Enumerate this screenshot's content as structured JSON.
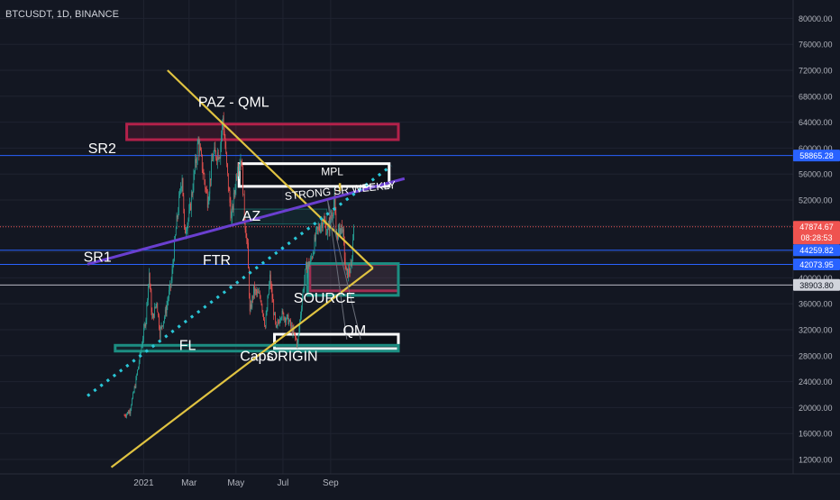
{
  "header": {
    "symbol": "BTCUSDT, 1D, BINANCE"
  },
  "colors": {
    "background": "#131722",
    "grid": "#1f2330",
    "up": "#26a69a",
    "down": "#ef5350",
    "yellow": "#e0c341",
    "purple": "#6a3fd0",
    "cyan": "#29c6d6",
    "blue_line": "#2962ff",
    "red_box": "#b3214a",
    "teal_box": "#1c8e82",
    "white_box": "#ffffff",
    "axis_text": "#b2b5be"
  },
  "chart_data": {
    "type": "candlestick",
    "symbol": "BTCUSDT",
    "interval": "1D",
    "exchange": "BINANCE",
    "ylim": [
      10000,
      82000
    ],
    "y_ticks": [
      12000,
      16000,
      20000,
      24000,
      28000,
      32000,
      36000,
      40000,
      44000,
      48000,
      52000,
      56000,
      60000,
      64000,
      68000,
      72000,
      76000,
      80000
    ],
    "y_tick_labels": [
      "12000.00",
      "16000.00",
      "20000.00",
      "24000.00",
      "28000.00",
      "32000.00",
      "36000.00",
      "40000.00",
      "44000.00",
      "48000.00",
      "52000.00",
      "56000.00",
      "60000.00",
      "64000.00",
      "68000.00",
      "72000.00",
      "76000.00",
      "80000.00"
    ],
    "x_labels": [
      {
        "label": "2021",
        "date": "2021-01-01"
      },
      {
        "label": "Mar",
        "date": "2021-03-01"
      },
      {
        "label": "May",
        "date": "2021-05-01"
      },
      {
        "label": "Jul",
        "date": "2021-07-01"
      },
      {
        "label": "Sep",
        "date": "2021-09-01"
      }
    ],
    "price_tags": [
      {
        "value": 58865.28,
        "text": "58865.28",
        "color": "#2962ff"
      },
      {
        "value": 47874.67,
        "text": "47874.67",
        "sub": "08:28:53",
        "color": "#ef5350"
      },
      {
        "value": 44259.82,
        "text": "44259.82",
        "color": "#2962ff"
      },
      {
        "value": 42073.95,
        "text": "42073.95",
        "color": "#2962ff"
      },
      {
        "value": 38903.8,
        "text": "38903.80",
        "color": "#d1d4dc"
      }
    ],
    "price_path": [
      [
        "2020-12-07",
        18800
      ],
      [
        "2020-12-14",
        19500
      ],
      [
        "2020-12-21",
        23500
      ],
      [
        "2020-12-28",
        28500
      ],
      [
        "2021-01-04",
        34000
      ],
      [
        "2021-01-08",
        40800
      ],
      [
        "2021-01-12",
        33500
      ],
      [
        "2021-01-18",
        36500
      ],
      [
        "2021-01-22",
        31500
      ],
      [
        "2021-01-29",
        34500
      ],
      [
        "2021-02-06",
        39500
      ],
      [
        "2021-02-12",
        47500
      ],
      [
        "2021-02-20",
        56000
      ],
      [
        "2021-02-23",
        47000
      ],
      [
        "2021-03-01",
        49500
      ],
      [
        "2021-03-13",
        61000
      ],
      [
        "2021-03-25",
        52000
      ],
      [
        "2021-04-01",
        58800
      ],
      [
        "2021-04-10",
        59500
      ],
      [
        "2021-04-14",
        64800
      ],
      [
        "2021-04-20",
        55500
      ],
      [
        "2021-04-25",
        49000
      ],
      [
        "2021-05-03",
        57500
      ],
      [
        "2021-05-08",
        58500
      ],
      [
        "2021-05-12",
        49500
      ],
      [
        "2021-05-16",
        44500
      ],
      [
        "2021-05-19",
        34500
      ],
      [
        "2021-05-24",
        38000
      ],
      [
        "2021-06-02",
        37000
      ],
      [
        "2021-06-08",
        32500
      ],
      [
        "2021-06-14",
        40000
      ],
      [
        "2021-06-22",
        31800
      ],
      [
        "2021-06-28",
        34500
      ],
      [
        "2021-07-08",
        33500
      ],
      [
        "2021-07-20",
        29800
      ],
      [
        "2021-07-26",
        37000
      ],
      [
        "2021-07-31",
        41500
      ],
      [
        "2021-08-06",
        42500
      ],
      [
        "2021-08-14",
        47000
      ],
      [
        "2021-08-22",
        49000
      ],
      [
        "2021-08-28",
        47000
      ],
      [
        "2021-09-06",
        52000
      ],
      [
        "2021-09-08",
        46500
      ],
      [
        "2021-09-16",
        48000
      ],
      [
        "2021-09-21",
        40500
      ],
      [
        "2021-09-28",
        41500
      ],
      [
        "2021-10-01",
        47874.67
      ]
    ],
    "zones": [
      {
        "label": "PAZ - QML",
        "x1": "2020-12-10",
        "x2": "2021-11-28",
        "y_top": 63700,
        "y_bottom": 61300,
        "color": "#b3214a"
      },
      {
        "label": "MPL",
        "x1": "2021-05-05",
        "x2": "2021-11-16",
        "y_top": 57600,
        "y_bottom": 54100,
        "color": "#ffffff"
      },
      {
        "label": "AZ",
        "x1": "2021-04-25",
        "x2": "2021-08-27",
        "y_top": 50600,
        "y_bottom": 48300,
        "color": "#1c8e82"
      },
      {
        "label": "SOURCE",
        "x1": "2021-08-05",
        "x2": "2021-11-28",
        "y_top": 42100,
        "y_bottom": 38000,
        "color": "#b3214a"
      },
      {
        "label": "",
        "x1": "2021-08-02",
        "x2": "2021-11-28",
        "y_top": 42200,
        "y_bottom": 37300,
        "color": "#1c8e82"
      },
      {
        "label": "QM",
        "x1": "2021-06-20",
        "x2": "2021-11-28",
        "y_top": 31300,
        "y_bottom": 29100,
        "color": "#ffffff"
      },
      {
        "label": "FL",
        "x1": "2020-11-25",
        "x2": "2021-11-28",
        "y_top": 29600,
        "y_bottom": 28700,
        "color": "#1c8e82"
      }
    ],
    "annotations": [
      {
        "text": "PAZ - QML",
        "date": "2021-04-28",
        "value": 66400
      },
      {
        "text": "SR2",
        "date": "2020-11-08",
        "value": 59200
      },
      {
        "text": "MPL",
        "date": "2021-09-03",
        "value": 55800
      },
      {
        "text": "STRONG SR WEEKLY",
        "date": "2021-11-25",
        "value": 53800
      },
      {
        "text": "AZ",
        "date": "2021-05-21",
        "value": 48800
      },
      {
        "text": "SR1",
        "date": "2020-11-02",
        "value": 42500
      },
      {
        "text": "FTR",
        "date": "2021-04-06",
        "value": 42000
      },
      {
        "text": "SOURCE",
        "date": "2021-08-24",
        "value": 36200
      },
      {
        "text": "QM",
        "date": "2021-10-02",
        "value": 31200
      },
      {
        "text": "FL",
        "date": "2021-02-27",
        "value": 28900
      },
      {
        "text": "Caps",
        "date": "2021-05-28",
        "value": 27200
      },
      {
        "text": "ORIGIN",
        "date": "2021-07-13",
        "value": 27200
      }
    ],
    "trendlines": [
      {
        "name": "descending-triangle-line",
        "points": [
          [
            "2021-02-01",
            72000
          ],
          [
            "2021-10-26",
            41500
          ]
        ],
        "color": "#e0c341",
        "style": "solid"
      },
      {
        "name": "ascending-triangle-line",
        "points": [
          [
            "2020-11-20",
            10800
          ],
          [
            "2021-10-26",
            41500
          ]
        ],
        "color": "#e0c341",
        "style": "solid"
      },
      {
        "name": "strong-sr-weekly-line",
        "points": [
          [
            "2020-10-20",
            42100
          ],
          [
            "2021-12-06",
            55300
          ]
        ],
        "color": "#6a3fd0",
        "style": "solid"
      },
      {
        "name": "dotted-trendline",
        "points": [
          [
            "2020-10-20",
            21800
          ],
          [
            "2021-11-19",
            57300
          ]
        ],
        "color": "#29c6d6",
        "style": "dotted"
      },
      {
        "name": "sr2-horizontal-line",
        "points": [
          [
            "2020-10-20",
            58865.28
          ],
          [
            "2021-12-06",
            58865.28
          ]
        ],
        "color": "#2962ff",
        "style": "solid"
      },
      {
        "name": "sr1-horizontal-line-upper",
        "points": [
          [
            "2020-10-20",
            44259.82
          ],
          [
            "2021-12-06",
            44259.82
          ]
        ],
        "color": "#2962ff",
        "style": "solid"
      },
      {
        "name": "sr1-horizontal-line-lower",
        "points": [
          [
            "2020-10-20",
            42073.95
          ],
          [
            "2021-12-06",
            42073.95
          ]
        ],
        "color": "#2962ff",
        "style": "solid"
      },
      {
        "name": "current-price-line",
        "points": [
          [
            "2020-10-20",
            47874.67
          ],
          [
            "2021-12-06",
            47874.67
          ]
        ],
        "color": "#ef5350",
        "style": "dotted"
      },
      {
        "name": "grey-price-line",
        "points": [
          [
            "2020-10-20",
            38903.8
          ],
          [
            "2021-12-06",
            38903.8
          ]
        ],
        "color": "#d1d4dc",
        "style": "solid"
      },
      {
        "name": "grey-projection-left",
        "points": [
          [
            "2021-08-28",
            52000
          ],
          [
            "2021-09-22",
            30500
          ]
        ],
        "color": "#6b6f7a",
        "style": "solid"
      },
      {
        "name": "grey-projection-right",
        "points": [
          [
            "2021-08-28",
            52000
          ],
          [
            "2021-10-10",
            30500
          ]
        ],
        "color": "#6b6f7a",
        "style": "solid"
      },
      {
        "name": "yellow-tick",
        "points": [
          [
            "2021-09-13",
            54600
          ],
          [
            "2021-09-13",
            53400
          ]
        ],
        "color": "#e0c341",
        "style": "solid"
      }
    ]
  }
}
